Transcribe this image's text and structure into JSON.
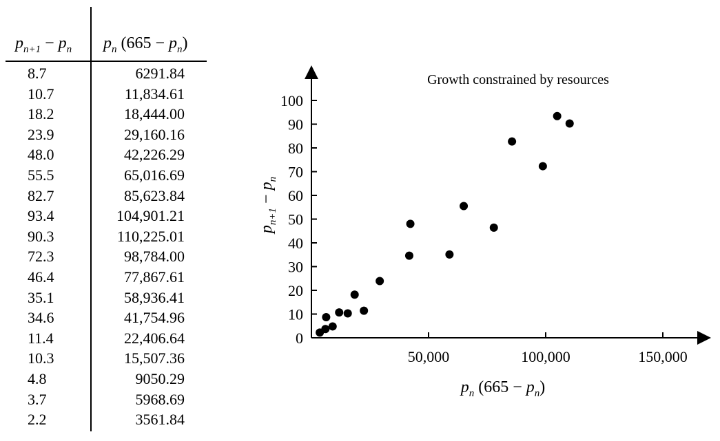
{
  "table": {
    "col1_header": {
      "base1": "p",
      "sub1": "n+1",
      "op": " − ",
      "base2": "p",
      "sub2": "n"
    },
    "col2_header": {
      "base1": "p",
      "sub1": "n",
      "open": " (665 − ",
      "base2": "p",
      "sub2": "n",
      "close": ")"
    },
    "rows": [
      {
        "diff": "8.7",
        "product": "6291.84"
      },
      {
        "diff": "10.7",
        "product": "11,834.61"
      },
      {
        "diff": "18.2",
        "product": "18,444.00"
      },
      {
        "diff": "23.9",
        "product": "29,160.16"
      },
      {
        "diff": "48.0",
        "product": "42,226.29"
      },
      {
        "diff": "55.5",
        "product": "65,016.69"
      },
      {
        "diff": "82.7",
        "product": "85,623.84"
      },
      {
        "diff": "93.4",
        "product": "104,901.21"
      },
      {
        "diff": "90.3",
        "product": "110,225.01"
      },
      {
        "diff": "72.3",
        "product": "98,784.00"
      },
      {
        "diff": "46.4",
        "product": "77,867.61"
      },
      {
        "diff": "35.1",
        "product": "58,936.41"
      },
      {
        "diff": "34.6",
        "product": "41,754.96"
      },
      {
        "diff": "11.4",
        "product": "22,406.64"
      },
      {
        "diff": "10.3",
        "product": "15,507.36"
      },
      {
        "diff": "4.8",
        "product": "9050.29"
      },
      {
        "diff": "3.7",
        "product": "5968.69"
      },
      {
        "diff": "2.2",
        "product": "3561.84"
      }
    ]
  },
  "chart_data": {
    "type": "scatter",
    "title": "Growth constrained by resources",
    "xlabel": "p_n (665 − p_n)",
    "ylabel": "p_{n+1} − p_n",
    "xlim": [
      0,
      165000
    ],
    "ylim": [
      0,
      105
    ],
    "x_ticks": [
      {
        "value": 50000,
        "label": "50,000"
      },
      {
        "value": 100000,
        "label": "100,000"
      },
      {
        "value": 150000,
        "label": "150,000"
      }
    ],
    "y_ticks": [
      {
        "value": 0,
        "label": "0"
      },
      {
        "value": 10,
        "label": "10"
      },
      {
        "value": 20,
        "label": "20"
      },
      {
        "value": 30,
        "label": "30"
      },
      {
        "value": 40,
        "label": "40"
      },
      {
        "value": 50,
        "label": "50"
      },
      {
        "value": 60,
        "label": "60"
      },
      {
        "value": 70,
        "label": "70"
      },
      {
        "value": 80,
        "label": "80"
      },
      {
        "value": 90,
        "label": "90"
      },
      {
        "value": 100,
        "label": "100"
      }
    ],
    "grid": false,
    "marker_color": "#000000",
    "points": [
      {
        "x": 6291.84,
        "y": 8.7
      },
      {
        "x": 11834.61,
        "y": 10.7
      },
      {
        "x": 18444.0,
        "y": 18.2
      },
      {
        "x": 29160.16,
        "y": 23.9
      },
      {
        "x": 42226.29,
        "y": 48.0
      },
      {
        "x": 65016.69,
        "y": 55.5
      },
      {
        "x": 85623.84,
        "y": 82.7
      },
      {
        "x": 104901.21,
        "y": 93.4
      },
      {
        "x": 110225.01,
        "y": 90.3
      },
      {
        "x": 98784.0,
        "y": 72.3
      },
      {
        "x": 77867.61,
        "y": 46.4
      },
      {
        "x": 58936.41,
        "y": 35.1
      },
      {
        "x": 41754.96,
        "y": 34.6
      },
      {
        "x": 22406.64,
        "y": 11.4
      },
      {
        "x": 15507.36,
        "y": 10.3
      },
      {
        "x": 9050.29,
        "y": 4.8
      },
      {
        "x": 5968.69,
        "y": 3.7
      },
      {
        "x": 3561.84,
        "y": 2.2
      }
    ]
  }
}
